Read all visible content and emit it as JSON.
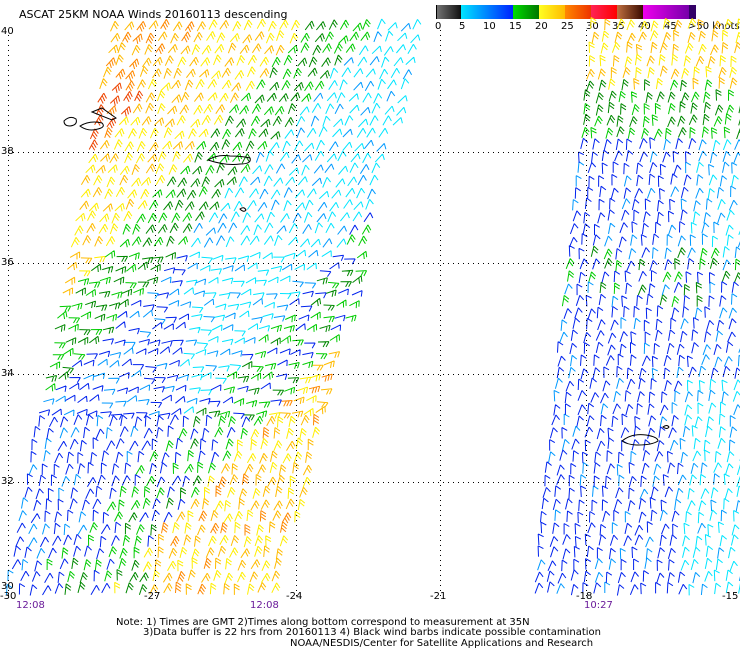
{
  "title": "ASCAT 25KM NOAA Winds 20160113 descending",
  "legend": {
    "ticks": [
      "0",
      "5",
      "10",
      "15",
      "20",
      "25",
      "30",
      "35",
      "40",
      "45",
      ">50 knots"
    ],
    "colors": {
      "gray": [
        "#777777",
        "#111111"
      ],
      "blue": [
        "#00e5ff",
        "#0022ff"
      ],
      "green": [
        "#00dd00",
        "#007700"
      ],
      "yellow": [
        "#ffff22",
        "#ffbb00"
      ],
      "orange": [
        "#ff8800",
        "#ee3300"
      ],
      "red": [
        "#ff2255",
        "#ff0000"
      ],
      "brown": [
        "#c07040",
        "#3a0a00"
      ],
      "magenta": [
        "#ee00ee",
        "#7700aa"
      ],
      "purple": "#330066"
    }
  },
  "axes": {
    "lat_labels": [
      "40",
      "38",
      "36",
      "34",
      "32",
      "30"
    ],
    "lon_labels": [
      "-30",
      "-27",
      "-24",
      "-21",
      "-18",
      "-15"
    ]
  },
  "times": [
    "12:08",
    "12:08",
    "10:27"
  ],
  "notes": {
    "line1": "Note: 1) Times are GMT 2)Times along bottom correspond to measurement at 35N",
    "line2": "3)Data buffer is 22 hrs from 20160113 4) Black wind barbs indicate possible contamination",
    "line3": "NOAA/NESDIS/Center for Satellite Applications and Research"
  }
}
